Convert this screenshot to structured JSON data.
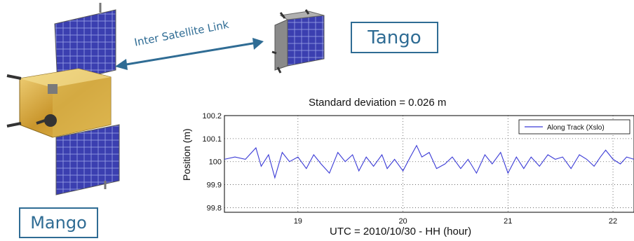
{
  "labels": {
    "tango": "Tango",
    "mango": "Mango",
    "link": "Inter Satellite Link"
  },
  "colors": {
    "accent": "#2f6c94",
    "series": "#3b3bd6",
    "panel": "#3b3fb0",
    "gold": "#d4a93a"
  },
  "chart_data": {
    "type": "line",
    "title": "Standard deviation = 0.026 m",
    "xlabel": "UTC = 2010/10/30 - HH   (hour)",
    "ylabel": "Position  (m)",
    "xlim": [
      18.3,
      22.2
    ],
    "ylim": [
      99.78,
      100.2
    ],
    "xticks": [
      "19",
      "20",
      "21",
      "22"
    ],
    "yticks": [
      "99.8",
      "99.9",
      "100",
      "100.1",
      "100.2"
    ],
    "grid": true,
    "legend_position": "top-right",
    "series": [
      {
        "name": "Along Track (Xslo)",
        "x": [
          18.3,
          18.4,
          18.5,
          18.6,
          18.65,
          18.72,
          18.78,
          18.85,
          18.92,
          19.0,
          19.08,
          19.15,
          19.22,
          19.3,
          19.38,
          19.45,
          19.52,
          19.58,
          19.65,
          19.72,
          19.8,
          19.85,
          19.92,
          20.0,
          20.07,
          20.13,
          20.18,
          20.25,
          20.32,
          20.4,
          20.47,
          20.55,
          20.62,
          20.7,
          20.78,
          20.85,
          20.93,
          21.0,
          21.08,
          21.15,
          21.22,
          21.3,
          21.38,
          21.45,
          21.52,
          21.6,
          21.68,
          21.75,
          21.82,
          21.88,
          21.93,
          22.0,
          22.07,
          22.13,
          22.2
        ],
        "y": [
          100.01,
          100.02,
          100.01,
          100.06,
          99.98,
          100.03,
          99.93,
          100.04,
          100.0,
          100.02,
          99.97,
          100.03,
          99.99,
          99.95,
          100.04,
          100.0,
          100.03,
          99.96,
          100.02,
          99.98,
          100.03,
          99.97,
          100.01,
          99.96,
          100.02,
          100.07,
          100.02,
          100.04,
          99.97,
          99.99,
          100.02,
          99.97,
          100.01,
          99.95,
          100.03,
          99.99,
          100.04,
          99.95,
          100.02,
          99.97,
          100.02,
          99.98,
          100.03,
          100.01,
          100.02,
          99.97,
          100.03,
          100.01,
          99.98,
          100.02,
          100.05,
          100.01,
          99.99,
          100.02,
          100.01
        ]
      }
    ]
  }
}
